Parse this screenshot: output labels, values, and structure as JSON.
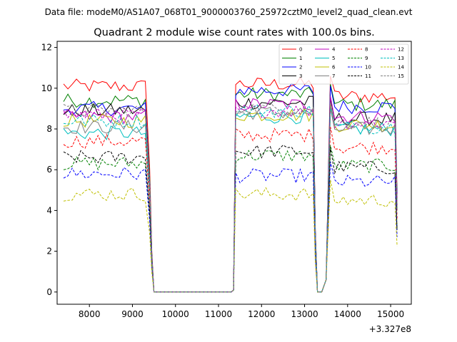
{
  "header": {
    "suptitle": "Data file: modeM0/AS1A07_068T01_9000003760_25972cztM0_level2_quad_clean.evt"
  },
  "chart_data": {
    "type": "line",
    "title": "Quadrant 2 module wise count rates with 100.0s bins.",
    "xlabel": "",
    "ylabel": "",
    "x_offset_label": "+3.327e8",
    "xlim": [
      7250,
      15480
    ],
    "ylim": [
      -0.6,
      12.3
    ],
    "xticks": [
      8000,
      9000,
      10000,
      11000,
      12000,
      13000,
      14000,
      15000
    ],
    "xtick_labels": [
      "8000",
      "9000",
      "10000",
      "11000",
      "12000",
      "13000",
      "14000",
      "15000"
    ],
    "yticks": [
      0,
      2,
      4,
      6,
      8,
      10,
      12
    ],
    "ytick_labels": [
      "0",
      "2",
      "4",
      "6",
      "8",
      "10",
      "12"
    ],
    "grid": false,
    "legend_location": "top-right",
    "segment1": {
      "start": 7400,
      "end": 9400
    },
    "segment2": {
      "start": 11400,
      "end": 13200
    },
    "segment3": {
      "start": 13600,
      "end": 15100
    },
    "series": [
      {
        "name": "0",
        "color": "#ff0000",
        "dash": "solid",
        "level1": 10.1,
        "level2": 10.2,
        "level3": 9.6
      },
      {
        "name": "1",
        "color": "#008000",
        "dash": "solid",
        "level1": 9.4,
        "level2": 9.7,
        "level3": 9.2
      },
      {
        "name": "2",
        "color": "#0000ff",
        "dash": "solid",
        "level1": 9.0,
        "level2": 9.9,
        "level3": 9.1
      },
      {
        "name": "3",
        "color": "#000000",
        "dash": "solid",
        "level1": 8.9,
        "level2": 9.3,
        "level3": 8.5
      },
      {
        "name": "4",
        "color": "#bf00bf",
        "dash": "solid",
        "level1": 8.6,
        "level2": 9.2,
        "level3": 8.6
      },
      {
        "name": "5",
        "color": "#00bfbf",
        "dash": "solid",
        "level1": 7.8,
        "level2": 8.6,
        "level3": 8.0
      },
      {
        "name": "6",
        "color": "#bfbf00",
        "dash": "solid",
        "level1": 8.4,
        "level2": 8.7,
        "level3": 8.2
      },
      {
        "name": "7",
        "color": "#808080",
        "dash": "solid",
        "level1": 8.1,
        "level2": 8.8,
        "level3": 8.0
      },
      {
        "name": "8",
        "color": "#ff0000",
        "dash": "dashed",
        "level1": 7.4,
        "level2": 7.7,
        "level3": 7.1
      },
      {
        "name": "9",
        "color": "#008000",
        "dash": "dashed",
        "level1": 6.3,
        "level2": 6.7,
        "level3": 6.2
      },
      {
        "name": "10",
        "color": "#0000ff",
        "dash": "dashed",
        "level1": 5.8,
        "level2": 5.7,
        "level3": 5.4
      },
      {
        "name": "11",
        "color": "#000000",
        "dash": "dashed",
        "level1": 6.6,
        "level2": 6.9,
        "level3": 6.1
      },
      {
        "name": "12",
        "color": "#bf00bf",
        "dash": "dashed",
        "level1": 8.7,
        "level2": 8.9,
        "level3": 8.3
      },
      {
        "name": "13",
        "color": "#00bfbf",
        "dash": "dashed",
        "level1": 8.4,
        "level2": 8.9,
        "level3": 8.1
      },
      {
        "name": "14",
        "color": "#bfbf00",
        "dash": "dashed",
        "level1": 4.8,
        "level2": 4.8,
        "level3": 4.5
      },
      {
        "name": "15",
        "color": "#808080",
        "dash": "dashed",
        "level1": 8.9,
        "level2": 9.0,
        "level3": 8.3
      }
    ]
  }
}
